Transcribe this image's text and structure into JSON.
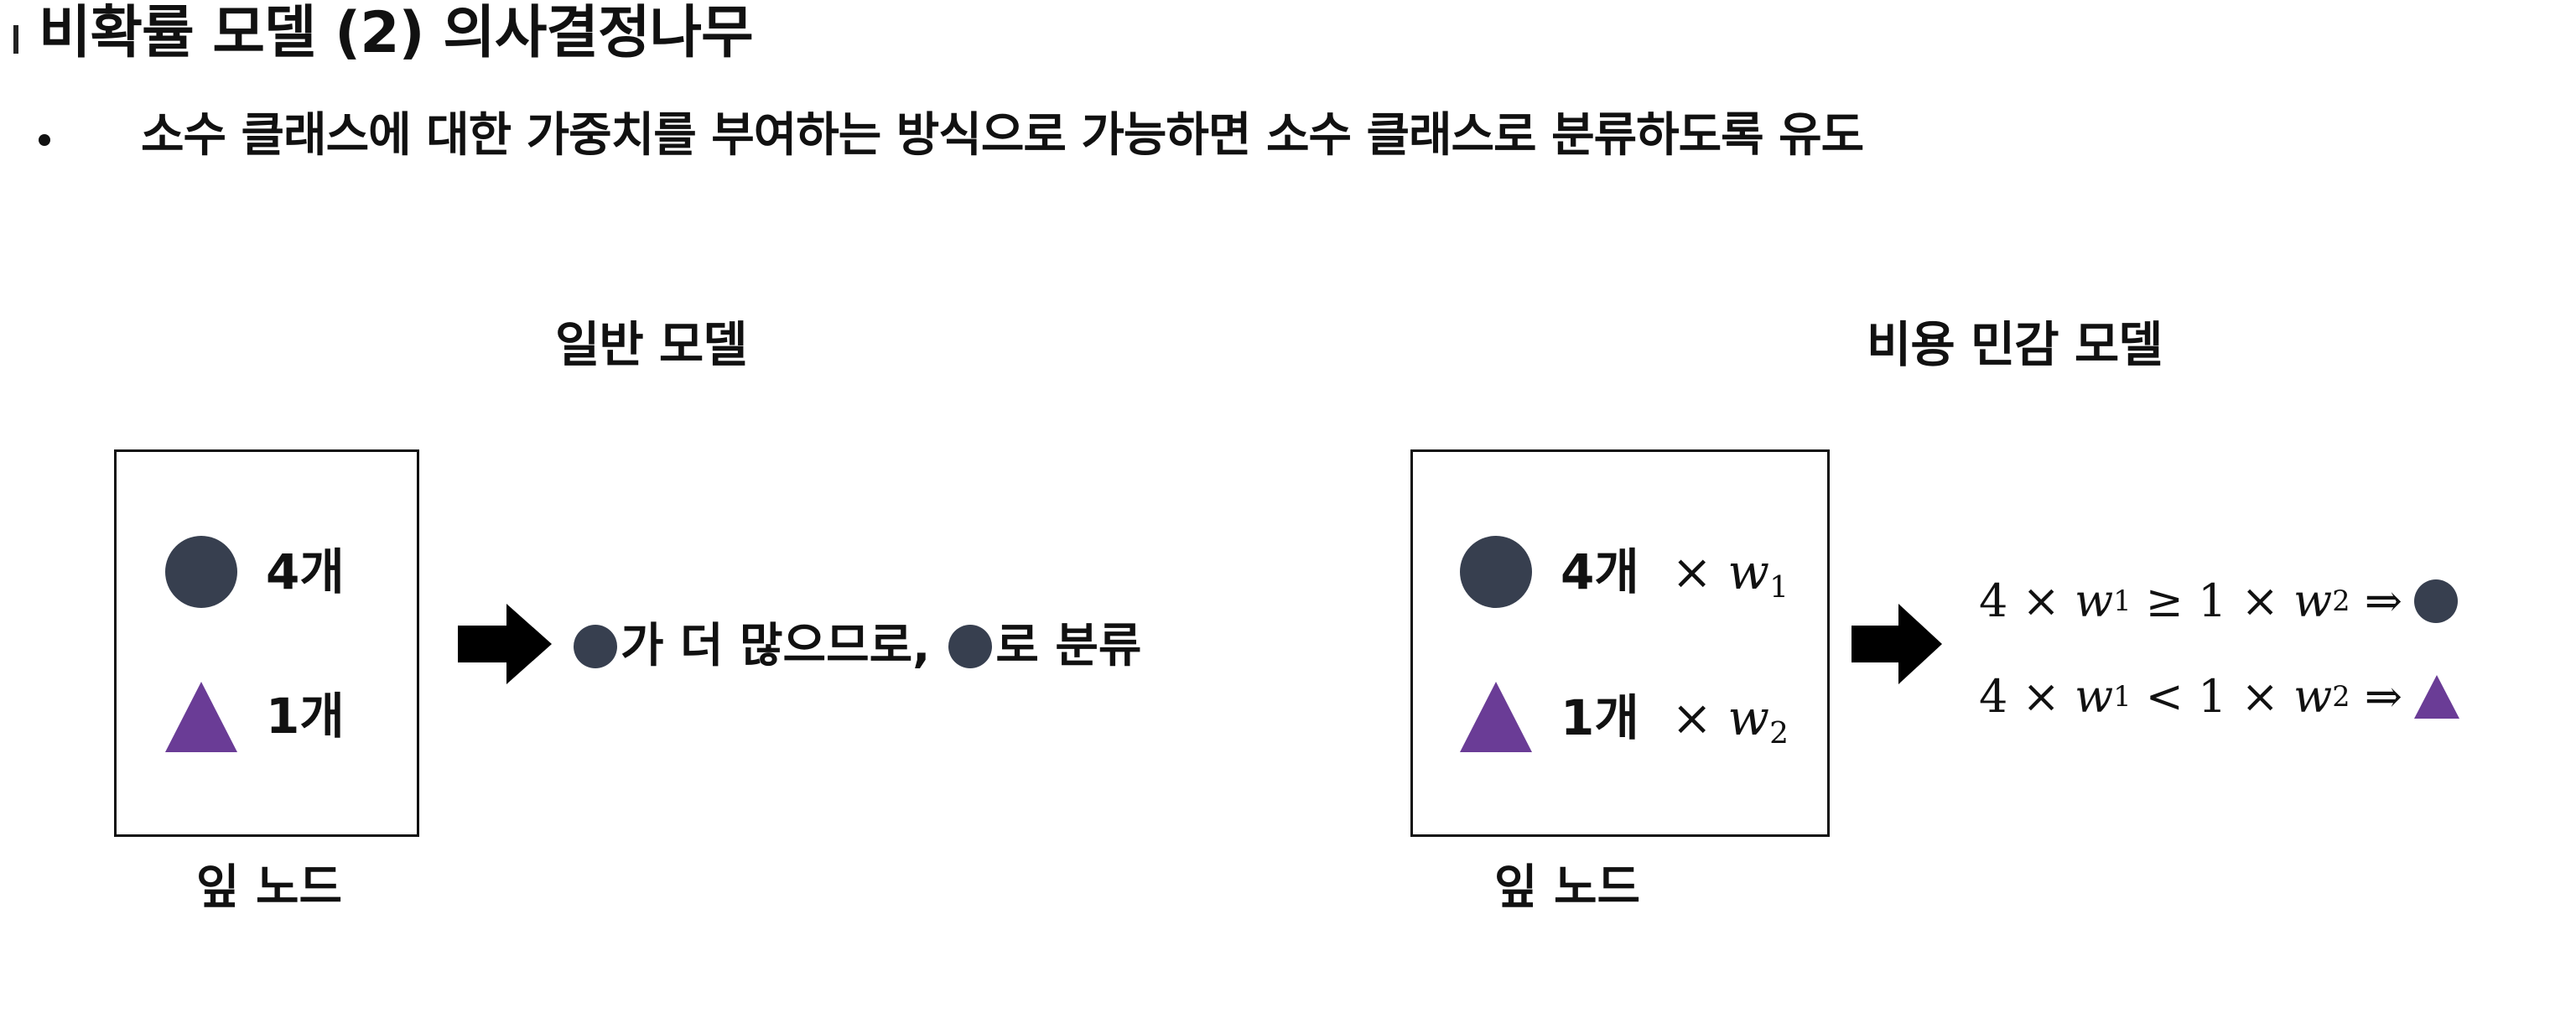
{
  "title": "비확률 모델 (2) 의사결정나무",
  "bullet": "소수 클래스에 대한 가중치를 부여하는 방식으로 가능하면 소수 클래스로 분류하도록 유도",
  "left_panel": {
    "heading": "일반 모델",
    "circle_count": "4개",
    "triangle_count": "1개",
    "caption": "잎 노드",
    "result_part1": "가 더 많으므로,",
    "result_part2": "로 분류"
  },
  "right_panel": {
    "heading": "비용 민감 모델",
    "circle_count": "4개",
    "triangle_count": "1개",
    "caption": "잎 노드",
    "times": "×",
    "weight_var": "w",
    "weight_1_sub": "1",
    "weight_2_sub": "2",
    "ineq1": {
      "lhs_num": "4",
      "op": "≥",
      "rhs_num": "1",
      "implies": "⇒"
    },
    "ineq2": {
      "lhs_num": "4",
      "op": "<",
      "rhs_num": "1",
      "implies": "⇒"
    }
  },
  "colors": {
    "circle": "#373f4f",
    "triangle": "#6a3c96",
    "arrow": "#000000"
  },
  "icons": {
    "arrow": "right-arrow-icon",
    "circle": "circle-icon",
    "triangle": "triangle-icon"
  }
}
